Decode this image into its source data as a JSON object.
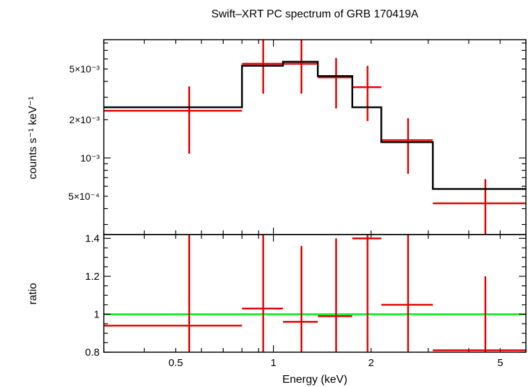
{
  "chart_data": [
    {
      "type": "step-spectrum",
      "title": "Swift–XRT PC spectrum of GRB 170419A",
      "ylabel": "counts s⁻¹ keV⁻¹",
      "xscale": "log",
      "yscale": "log",
      "xlim": [
        0.3,
        6.0
      ],
      "ylim": [
        0.00025,
        0.0085
      ],
      "ytick_labels": [
        {
          "value": 0.005,
          "label": "5×10⁻³"
        },
        {
          "value": 0.002,
          "label": "2×10⁻³"
        },
        {
          "value": 0.001,
          "label": "10⁻³"
        },
        {
          "value": 0.0005,
          "label": "5×10⁻⁴"
        }
      ],
      "data_color": "#e00000",
      "model_color": "#000000",
      "data_points": [
        {
          "xlo": 0.3,
          "xhi": 0.8,
          "x": 0.55,
          "y": 0.00235,
          "ylo": 0.00108,
          "yhi": 0.00365
        },
        {
          "xlo": 0.8,
          "xhi": 1.07,
          "x": 0.93,
          "y": 0.0055,
          "ylo": 0.0032,
          "yhi": 0.0088
        },
        {
          "xlo": 1.07,
          "xhi": 1.37,
          "x": 1.22,
          "y": 0.0055,
          "ylo": 0.0032,
          "yhi": 0.0088
        },
        {
          "xlo": 1.37,
          "xhi": 1.75,
          "x": 1.56,
          "y": 0.0043,
          "ylo": 0.00245,
          "yhi": 0.0061
        },
        {
          "xlo": 1.75,
          "xhi": 2.15,
          "x": 1.95,
          "y": 0.0036,
          "ylo": 0.00195,
          "yhi": 0.0053
        },
        {
          "xlo": 2.15,
          "xhi": 3.1,
          "x": 2.6,
          "y": 0.00138,
          "ylo": 0.00075,
          "yhi": 0.00205
        },
        {
          "xlo": 3.1,
          "xhi": 6.0,
          "x": 4.5,
          "y": 0.00044,
          "ylo": 0.00025,
          "yhi": 0.00068
        }
      ],
      "model_steps": [
        {
          "xlo": 0.3,
          "xhi": 0.8,
          "y": 0.0025
        },
        {
          "xlo": 0.8,
          "xhi": 1.07,
          "y": 0.0053
        },
        {
          "xlo": 1.07,
          "xhi": 1.37,
          "y": 0.0057
        },
        {
          "xlo": 1.37,
          "xhi": 1.75,
          "y": 0.0044
        },
        {
          "xlo": 1.75,
          "xhi": 2.15,
          "y": 0.0025
        },
        {
          "xlo": 2.15,
          "xhi": 3.1,
          "y": 0.00133
        },
        {
          "xlo": 3.1,
          "xhi": 6.0,
          "y": 0.00057
        }
      ]
    },
    {
      "type": "ratio",
      "xlabel": "Energy (keV)",
      "ylabel": "ratio",
      "xscale": "log",
      "xlim": [
        0.3,
        6.0
      ],
      "ylim": [
        0.8,
        1.42
      ],
      "ytick_labels": [
        {
          "value": 0.8,
          "label": "0.8"
        },
        {
          "value": 1.0,
          "label": "1"
        },
        {
          "value": 1.2,
          "label": "1.2"
        },
        {
          "value": 1.4,
          "label": "1.4"
        }
      ],
      "xtick_labels": [
        {
          "value": 0.5,
          "label": "0.5"
        },
        {
          "value": 1,
          "label": "1"
        },
        {
          "value": 2,
          "label": "2"
        },
        {
          "value": 5,
          "label": "5"
        }
      ],
      "reference_line": {
        "y": 1.0,
        "color": "#00ee00"
      },
      "data_color": "#e00000",
      "data_points": [
        {
          "xlo": 0.3,
          "xhi": 0.8,
          "x": 0.55,
          "y": 0.94,
          "ylo": 0.8,
          "yhi": 1.42
        },
        {
          "xlo": 0.8,
          "xhi": 1.07,
          "x": 0.93,
          "y": 1.03,
          "ylo": 0.8,
          "yhi": 1.42
        },
        {
          "xlo": 1.07,
          "xhi": 1.37,
          "x": 1.22,
          "y": 0.96,
          "ylo": 0.8,
          "yhi": 1.36
        },
        {
          "xlo": 1.37,
          "xhi": 1.75,
          "x": 1.56,
          "y": 0.99,
          "ylo": 0.8,
          "yhi": 1.4
        },
        {
          "xlo": 1.75,
          "xhi": 2.15,
          "x": 1.95,
          "y": 1.4,
          "ylo": 0.8,
          "yhi": 1.42
        },
        {
          "xlo": 2.15,
          "xhi": 3.1,
          "x": 2.6,
          "y": 1.05,
          "ylo": 0.8,
          "yhi": 1.42
        },
        {
          "xlo": 3.1,
          "xhi": 6.0,
          "x": 4.5,
          "y": 0.81,
          "ylo": 0.8,
          "yhi": 1.2
        }
      ]
    }
  ]
}
